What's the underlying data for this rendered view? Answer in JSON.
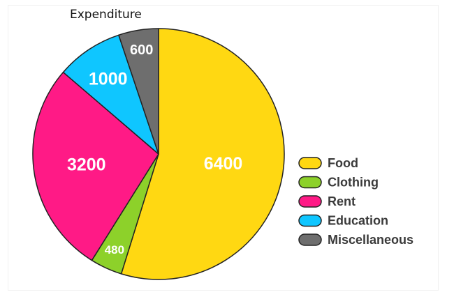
{
  "chart_data": {
    "type": "pie",
    "title": "Expenditure",
    "slices": [
      {
        "label": "Food",
        "value": 6400,
        "color": "#FFD812"
      },
      {
        "label": "Clothing",
        "value": 480,
        "color": "#8DD12A"
      },
      {
        "label": "Rent",
        "value": 3200,
        "color": "#FF1A86"
      },
      {
        "label": "Education",
        "value": 1000,
        "color": "#0FC6FF"
      },
      {
        "label": "Miscellaneous",
        "value": 600,
        "color": "#6E6E6E"
      }
    ],
    "legend_position": "right",
    "start_angle_deg": 0,
    "direction": "clockwise"
  }
}
